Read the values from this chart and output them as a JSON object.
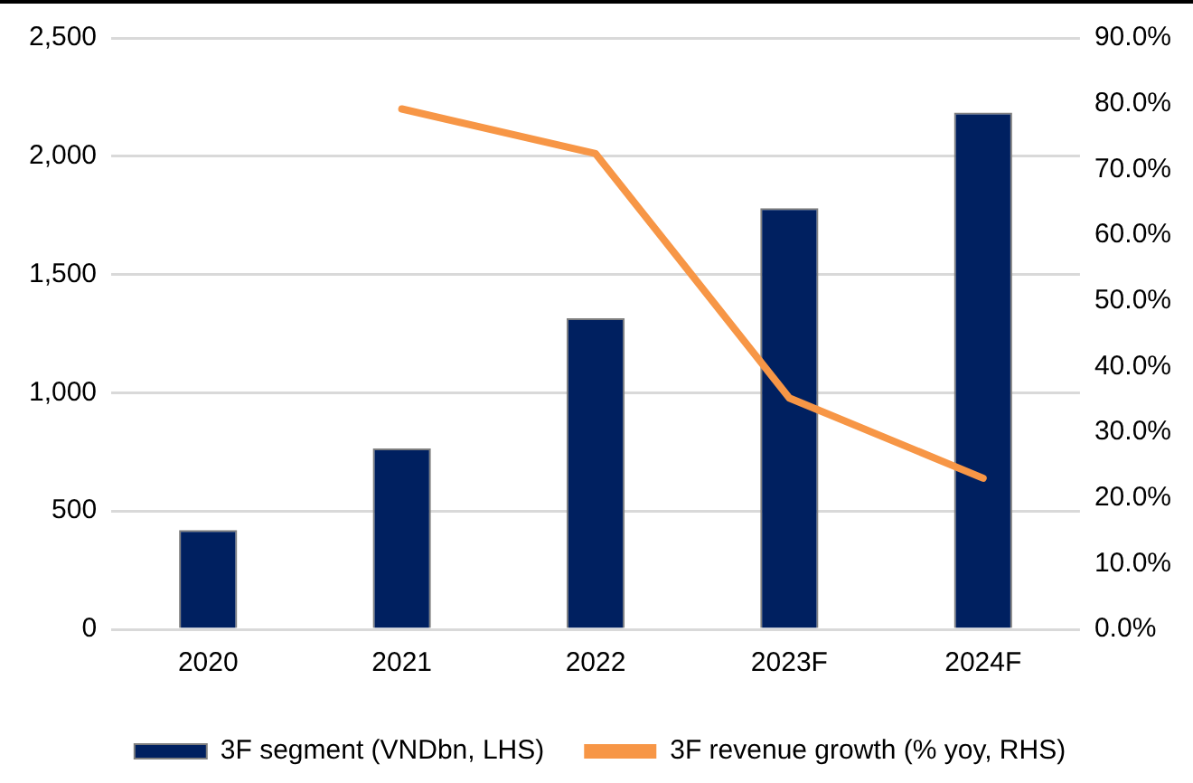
{
  "chart_data": {
    "type": "bar",
    "categories": [
      "2020",
      "2021",
      "2022",
      "2023F",
      "2024F"
    ],
    "series": [
      {
        "name": "3F segment (VNDbn, LHS)",
        "color": "#002060",
        "values": [
          420,
          765,
          1315,
          1780,
          2185
        ]
      },
      {
        "name": "3F revenue growth (% yoy, RHS)",
        "type": "line",
        "axis": "y2",
        "color": "#f79646",
        "values": [
          null,
          79.2,
          72.4,
          35.2,
          23.0
        ]
      }
    ],
    "ylim": [
      0,
      2500
    ],
    "yticks": [
      {
        "value": 0,
        "label": "0"
      },
      {
        "value": 500,
        "label": "500"
      },
      {
        "value": 1000,
        "label": "1,000"
      },
      {
        "value": 1500,
        "label": "1,500"
      },
      {
        "value": 2000,
        "label": "2,000"
      },
      {
        "value": 2500,
        "label": "2,500"
      }
    ],
    "y2lim": [
      0,
      90
    ],
    "y2ticks": [
      {
        "value": 0,
        "label": "0.0%"
      },
      {
        "value": 10,
        "label": "10.0%"
      },
      {
        "value": 20,
        "label": "20.0%"
      },
      {
        "value": 30,
        "label": "30.0%"
      },
      {
        "value": 40,
        "label": "40.0%"
      },
      {
        "value": 50,
        "label": "50.0%"
      },
      {
        "value": 60,
        "label": "60.0%"
      },
      {
        "value": 70,
        "label": "70.0%"
      },
      {
        "value": 80,
        "label": "80.0%"
      },
      {
        "value": 90,
        "label": "90.0%"
      }
    ],
    "grid": "y",
    "legend": "bottom",
    "marker": "none",
    "line_style": "solid"
  }
}
